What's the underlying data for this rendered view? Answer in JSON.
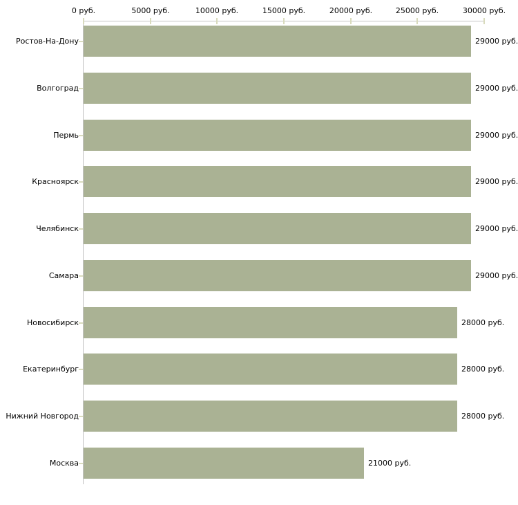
{
  "chart_data": {
    "type": "bar",
    "orientation": "horizontal",
    "title": "",
    "categories": [
      "Ростов-На-Дону",
      "Волгоград",
      "Пермь",
      "Красноярск",
      "Челябинск",
      "Самара",
      "Новосибирск",
      "Екатеринбург",
      "Нижний Новгород",
      "Москва"
    ],
    "values": [
      29000,
      29000,
      29000,
      29000,
      29000,
      29000,
      28000,
      28000,
      28000,
      21000
    ],
    "value_labels": [
      "29000 руб.",
      "29000 руб.",
      "29000 руб.",
      "29000 руб.",
      "29000 руб.",
      "29000 руб.",
      "28000 руб.",
      "28000 руб.",
      "28000 руб.",
      "21000 руб."
    ],
    "x_axis": {
      "position": "top",
      "range": [
        0,
        30000
      ],
      "tick_values": [
        0,
        5000,
        10000,
        15000,
        20000,
        25000,
        30000
      ],
      "tick_labels": [
        "0 руб.",
        "5000 руб.",
        "10000 руб.",
        "15000 руб.",
        "20000 руб.",
        "25000 руб.",
        "30000 руб."
      ]
    },
    "grid": false,
    "legend": false,
    "colors": {
      "bar": "#aab294",
      "axis_line": "#c4c4c4",
      "tick": "#d9dbbd",
      "text": "#000000",
      "background": "#ffffff"
    }
  }
}
